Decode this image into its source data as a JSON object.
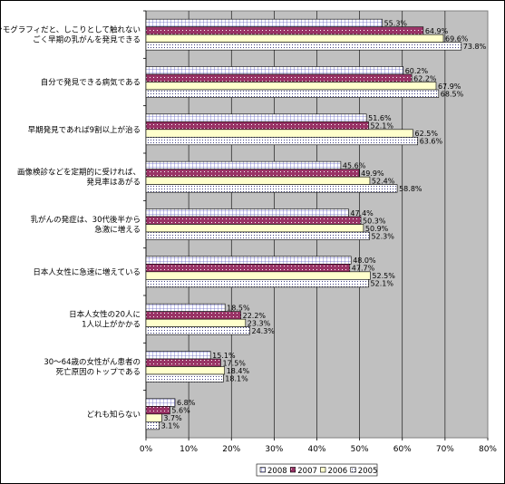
{
  "chart_data": {
    "type": "bar",
    "orientation": "horizontal",
    "categories": [
      [
        "マンモグラフィだと、しこりとして触れない",
        "ごく早期の乳がんを発見できる"
      ],
      [
        "自分で発見できる病気である"
      ],
      [
        "早期発見であれば9割以上が治る"
      ],
      [
        "画像検診などを定期的に受ければ、",
        "発見率はあがる"
      ],
      [
        "乳がんの発症は、30代後半から",
        "急激に増える"
      ],
      [
        "日本人女性に急速に増えている"
      ],
      [
        "日本人女性の20人に",
        "1人以上がかかる"
      ],
      [
        "30～64歳の女性がん患者の",
        "死亡原因のトップである"
      ],
      [
        "どれも知らない"
      ]
    ],
    "series": [
      {
        "name": "2008",
        "values": [
          55.3,
          60.2,
          51.6,
          45.6,
          47.4,
          48.0,
          18.5,
          15.1,
          6.8
        ],
        "labels": [
          "55.3%",
          "60.2%",
          "51.6%",
          "45.6%",
          "47.4%",
          "48.0%",
          "18.5%",
          "15.1%",
          "6.8%"
        ]
      },
      {
        "name": "2007",
        "values": [
          64.9,
          62.2,
          52.1,
          49.9,
          50.3,
          47.7,
          22.2,
          17.5,
          5.6
        ],
        "labels": [
          "64.9%",
          "62.2%",
          "52.1%",
          "49.9%",
          "50.3%",
          "47.7%",
          "22.2%",
          "17.5%",
          "5.6%"
        ]
      },
      {
        "name": "2006",
        "values": [
          69.6,
          67.9,
          62.5,
          52.4,
          50.9,
          52.5,
          23.3,
          18.4,
          3.7
        ],
        "labels": [
          "69.6%",
          "67.9%",
          "62.5%",
          "52.4%",
          "50.9%",
          "52.5%",
          "23.3%",
          "18.4%",
          "3.7%"
        ]
      },
      {
        "name": "2005",
        "values": [
          73.8,
          68.5,
          63.6,
          58.8,
          52.3,
          52.1,
          24.3,
          18.1,
          3.1
        ],
        "labels": [
          "73.8%",
          "68.5%",
          "63.6%",
          "58.8%",
          "52.3%",
          "52.1%",
          "24.3%",
          "18.1%",
          "3.1%"
        ]
      }
    ],
    "xlim": [
      0,
      80
    ],
    "x_ticks": [
      "0%",
      "10%",
      "20%",
      "30%",
      "40%",
      "50%",
      "60%",
      "70%",
      "80%"
    ],
    "title": "",
    "xlabel": "",
    "ylabel": "",
    "grid": true,
    "plot_background": "#c0c0c0",
    "legend_position": "bottom",
    "styles": [
      {
        "fill": "#ffffff",
        "pattern": "grid",
        "pattern_color": "#6060c0"
      },
      {
        "fill": "#993366",
        "pattern": "dots",
        "pattern_color": "#ffffff"
      },
      {
        "fill": "#ffffcc",
        "pattern": "none"
      },
      {
        "fill": "#ffffff",
        "pattern": "dots",
        "pattern_color": "#404080"
      }
    ]
  }
}
